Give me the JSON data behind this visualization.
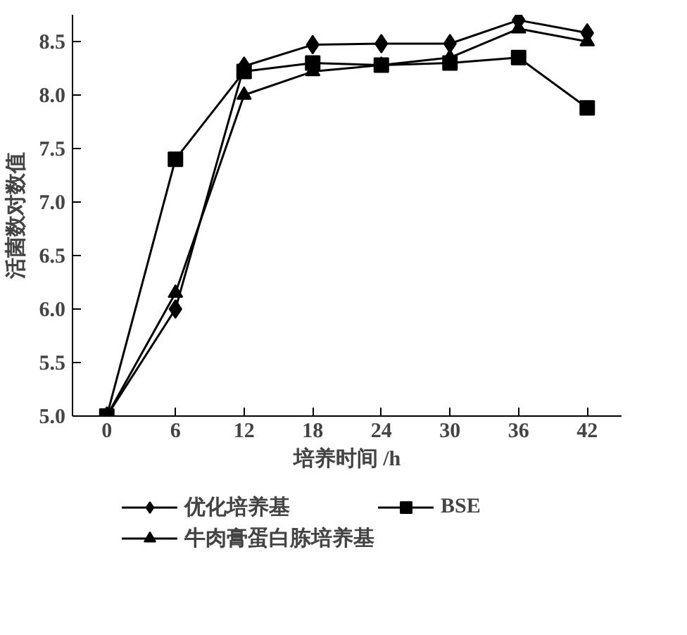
{
  "chart_data": {
    "type": "line",
    "xlabel": "培养时间 /h",
    "ylabel": "活菌数对数值",
    "x": [
      0,
      6,
      12,
      18,
      24,
      30,
      36,
      42
    ],
    "series": [
      {
        "name": "优化培养基",
        "color": "#000000",
        "marker": "diamond",
        "values": [
          5.0,
          6.0,
          8.27,
          8.47,
          8.48,
          8.48,
          8.7,
          8.58
        ]
      },
      {
        "name": "BSE",
        "color": "#000000",
        "marker": "square",
        "values": [
          5.0,
          7.4,
          8.22,
          8.3,
          8.28,
          8.3,
          8.35,
          7.88
        ]
      },
      {
        "name": "牛肉膏蛋白胨培养基",
        "color": "#000000",
        "marker": "triangle",
        "values": [
          5.0,
          6.15,
          8.0,
          8.22,
          8.28,
          8.35,
          8.62,
          8.5
        ]
      }
    ],
    "xlim": [
      -3,
      45
    ],
    "xticks": [
      0,
      6,
      12,
      18,
      24,
      30,
      36,
      42
    ],
    "ylim": [
      5.0,
      8.75
    ],
    "yticks": [
      {
        "value": 5.0,
        "label": "5.0"
      },
      {
        "value": 5.5,
        "label": "5.5"
      },
      {
        "value": 6.0,
        "label": "6.0"
      },
      {
        "value": 6.5,
        "label": "6.5"
      },
      {
        "value": 7.0,
        "label": "7.0"
      },
      {
        "value": 7.5,
        "label": "7.5"
      },
      {
        "value": 8.0,
        "label": "8.0"
      },
      {
        "value": 8.5,
        "label": "8.5"
      }
    ],
    "grid": false,
    "legend": "bottom",
    "line_style": "solid"
  }
}
